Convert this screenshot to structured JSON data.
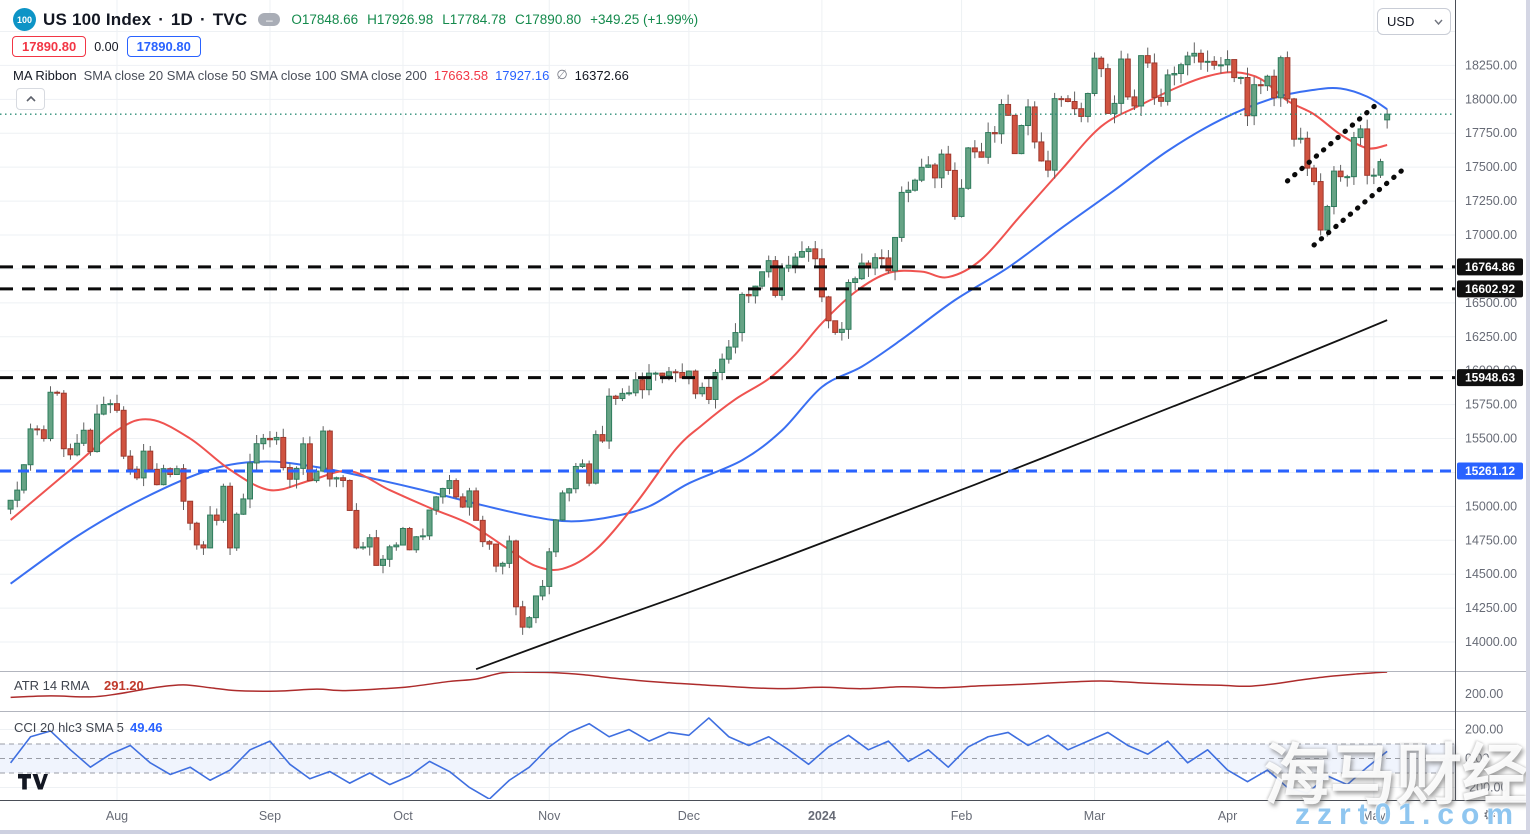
{
  "header": {
    "symbol_badge": "100",
    "title": "US 100 Index",
    "sep": "·",
    "timeframe": "1D",
    "exchange": "TVC",
    "minimize_glyph": "–",
    "ohlc": {
      "o": "O17848.66",
      "h": "H17926.98",
      "l": "L17784.78",
      "c": "C17890.80",
      "change": "+349.25 (+1.99%)"
    },
    "sell_price": "17890.80",
    "spread": "0.00",
    "buy_price": "17890.80",
    "ma_legend": {
      "name": "MA Ribbon",
      "params": "SMA close 20 SMA close 50 SMA close 100 SMA close 200",
      "v20": "17663.58",
      "v50": "17927.16",
      "v100": "∅",
      "v200": "16372.66"
    }
  },
  "axis": {
    "currency": "USD"
  },
  "pane_legends": {
    "atr_name": "ATR 14 RMA",
    "atr_value": "291.20",
    "cci_name": "CCI 20 hlc3 SMA 5",
    "cci_value": "49.46"
  },
  "watermarks": {
    "cn": "海马财经",
    "site": "zzrt01.com"
  },
  "colors": {
    "up_fill": "#66a385",
    "up_border": "#2f7c5d",
    "down_fill": "#d05340",
    "down_border": "#9f392e",
    "wick": "#616161",
    "sma20": "#ef5350",
    "sma50": "#3a6ff2",
    "sma200": "#131313",
    "atr_line": "#ad2c2c",
    "cci_line": "#3f6fe0",
    "level_black": "#0a0a0a",
    "level_blue": "#2962ff",
    "current_price": "#2f8e78",
    "grid": "#eef1f4",
    "axis_text": "#676b76",
    "badge_black": "#101010",
    "badge_blue": "#2962ff",
    "cci_band_fill": "rgba(62,111,224,0.08)",
    "band_dash": "#9a9da6"
  },
  "chart_data": {
    "type": "candlestick",
    "symbol": "US 100 Index (TVC)",
    "interval": "1D",
    "date_range": "2023-07-10 to 2024-05-03",
    "price_axis": {
      "min": 13790,
      "max": 18730,
      "grid_step": 250,
      "labels": [
        18250,
        18000,
        17750,
        17500,
        17250,
        17000,
        16500,
        16250,
        16000,
        15750,
        15500,
        15000,
        14750,
        14500,
        14250,
        14000
      ]
    },
    "months": [
      [
        "Aug",
        16
      ],
      [
        "Sep",
        39
      ],
      [
        "Oct",
        59
      ],
      [
        "Nov",
        81
      ],
      [
        "Dec",
        102
      ],
      [
        "2024",
        122
      ],
      [
        "Feb",
        143
      ],
      [
        "Mar",
        163
      ],
      [
        "Apr",
        183
      ],
      [
        "May",
        205
      ]
    ],
    "candles": {
      "first_open": 14980,
      "closes": [
        15045,
        15120,
        15307,
        15571,
        15565,
        15500,
        15841,
        15834,
        15425,
        15380,
        15465,
        15561,
        15404,
        15680,
        15751,
        15757,
        15708,
        15370,
        15274,
        15210,
        15407,
        15273,
        15160,
        15278,
        15235,
        15278,
        15038,
        14876,
        14716,
        14694,
        14936,
        14897,
        15148,
        14694,
        14942,
        15055,
        15320,
        15462,
        15501,
        15491,
        15508,
        15286,
        15200,
        15280,
        15461,
        15190,
        15260,
        15555,
        15202,
        15211,
        15191,
        14970,
        14694,
        14701,
        14769,
        14565,
        14610,
        14702,
        14715,
        14837,
        14680,
        14776,
        14783,
        14973,
        15070,
        15132,
        15190,
        15070,
        14995,
        15114,
        14897,
        14740,
        14722,
        14560,
        14580,
        14745,
        14260,
        14110,
        14180,
        14340,
        14410,
        14665,
        14900,
        15099,
        15130,
        15294,
        15313,
        15171,
        15529,
        15482,
        15812,
        15795,
        15833,
        15837,
        15933,
        15860,
        15982,
        15982,
        15963,
        15992,
        15987,
        15947,
        15997,
        15830,
        15877,
        15788,
        15987,
        16085,
        16174,
        16281,
        16562,
        16552,
        16623,
        16729,
        16811,
        16555,
        16757,
        16777,
        16837,
        16878,
        16898,
        16825,
        16544,
        16368,
        16282,
        16305,
        16650,
        16678,
        16793,
        16757,
        16833,
        16831,
        16736,
        16982,
        17314,
        17330,
        17404,
        17499,
        17516,
        17421,
        17596,
        17476,
        17137,
        17344,
        17642,
        17613,
        17573,
        17755,
        17746,
        17962,
        17882,
        17600,
        17807,
        17944,
        17686,
        17546,
        17478,
        18005,
        18004,
        17984,
        17931,
        17874,
        18043,
        18303,
        18226,
        17896,
        17970,
        18297,
        18018,
        17951,
        18322,
        18268,
        18014,
        17985,
        18180,
        18190,
        18255,
        18319,
        18339,
        18275,
        18280,
        18251,
        18254,
        18293,
        18160,
        18161,
        17879,
        18108,
        18100,
        18170,
        18011,
        18307,
        18003,
        17706,
        17713,
        17493,
        17394,
        17037,
        17210,
        17471,
        17430,
        17430,
        17718,
        17782,
        17440,
        17441,
        17541,
        17890.8
      ],
      "last_bar": {
        "open": 17848.66,
        "high": 17926.98,
        "low": 17784.78,
        "close": 17890.8
      }
    },
    "overlays": {
      "sma20": {
        "name": "SMA 20",
        "value": 17663.58,
        "anchors": [
          [
            0,
            14900
          ],
          [
            8,
            15230
          ],
          [
            16,
            15560
          ],
          [
            21,
            15640
          ],
          [
            27,
            15500
          ],
          [
            33,
            15270
          ],
          [
            39,
            15120
          ],
          [
            45,
            15190
          ],
          [
            51,
            15260
          ],
          [
            57,
            15120
          ],
          [
            63,
            14990
          ],
          [
            69,
            14870
          ],
          [
            75,
            14680
          ],
          [
            79,
            14560
          ],
          [
            83,
            14540
          ],
          [
            88,
            14680
          ],
          [
            94,
            15020
          ],
          [
            100,
            15420
          ],
          [
            104,
            15600
          ],
          [
            109,
            15790
          ],
          [
            114,
            15940
          ],
          [
            118,
            16120
          ],
          [
            122,
            16350
          ],
          [
            127,
            16580
          ],
          [
            132,
            16720
          ],
          [
            137,
            16730
          ],
          [
            141,
            16690
          ],
          [
            146,
            16820
          ],
          [
            152,
            17150
          ],
          [
            158,
            17480
          ],
          [
            164,
            17800
          ],
          [
            170,
            17960
          ],
          [
            176,
            18100
          ],
          [
            180,
            18170
          ],
          [
            184,
            18200
          ],
          [
            188,
            18150
          ],
          [
            192,
            17990
          ],
          [
            196,
            17890
          ],
          [
            200,
            17740
          ],
          [
            204,
            17640
          ],
          [
            207,
            17663.58
          ]
        ]
      },
      "sma50": {
        "name": "SMA 50",
        "value": 17927.16,
        "anchors": [
          [
            0,
            14430
          ],
          [
            10,
            14780
          ],
          [
            20,
            15060
          ],
          [
            30,
            15270
          ],
          [
            38,
            15330
          ],
          [
            46,
            15290
          ],
          [
            54,
            15210
          ],
          [
            62,
            15120
          ],
          [
            70,
            15020
          ],
          [
            78,
            14930
          ],
          [
            84,
            14890
          ],
          [
            90,
            14920
          ],
          [
            96,
            15000
          ],
          [
            102,
            15170
          ],
          [
            110,
            15340
          ],
          [
            116,
            15560
          ],
          [
            122,
            15880
          ],
          [
            128,
            16030
          ],
          [
            134,
            16230
          ],
          [
            142,
            16520
          ],
          [
            150,
            16760
          ],
          [
            158,
            17050
          ],
          [
            166,
            17330
          ],
          [
            174,
            17620
          ],
          [
            182,
            17850
          ],
          [
            190,
            18010
          ],
          [
            196,
            18070
          ],
          [
            200,
            18080
          ],
          [
            204,
            18020
          ],
          [
            207,
            17927.16
          ]
        ]
      },
      "sma200": {
        "name": "SMA 200",
        "value": 16372.66,
        "anchors": [
          [
            70,
            13800
          ],
          [
            85,
            14070
          ],
          [
            100,
            14330
          ],
          [
            115,
            14600
          ],
          [
            130,
            14880
          ],
          [
            145,
            15160
          ],
          [
            160,
            15450
          ],
          [
            175,
            15740
          ],
          [
            190,
            16030
          ],
          [
            200,
            16230
          ],
          [
            207,
            16372.66
          ]
        ]
      },
      "levels": [
        {
          "price": 16764.86,
          "label": "16764.86",
          "color": "black"
        },
        {
          "price": 16602.92,
          "label": "16602.92",
          "color": "black"
        },
        {
          "price": 15948.63,
          "label": "15948.63",
          "color": "black"
        },
        {
          "price": 15261.12,
          "label": "15261.12",
          "color": "blue"
        }
      ],
      "current_price": 17890.8,
      "channel": {
        "upper": [
          [
            192,
            17398
          ],
          [
            206,
            17988
          ]
        ],
        "lower": [
          [
            196,
            16926
          ],
          [
            210,
            17508
          ]
        ]
      }
    },
    "indicators": {
      "atr": {
        "name": "ATR 14 RMA",
        "current": 291.2,
        "axis_labels": [
          200
        ],
        "anchors": [
          [
            0,
            186
          ],
          [
            6,
            192
          ],
          [
            12,
            188
          ],
          [
            16,
            200
          ],
          [
            22,
            228
          ],
          [
            26,
            238
          ],
          [
            30,
            226
          ],
          [
            34,
            214
          ],
          [
            40,
            212
          ],
          [
            46,
            220
          ],
          [
            50,
            214
          ],
          [
            56,
            222
          ],
          [
            60,
            230
          ],
          [
            66,
            252
          ],
          [
            70,
            262
          ],
          [
            74,
            288
          ],
          [
            78,
            290
          ],
          [
            82,
            288
          ],
          [
            86,
            280
          ],
          [
            92,
            262
          ],
          [
            98,
            248
          ],
          [
            104,
            238
          ],
          [
            110,
            228
          ],
          [
            116,
            222
          ],
          [
            122,
            228
          ],
          [
            128,
            222
          ],
          [
            134,
            230
          ],
          [
            140,
            226
          ],
          [
            146,
            234
          ],
          [
            152,
            240
          ],
          [
            158,
            248
          ],
          [
            164,
            254
          ],
          [
            170,
            246
          ],
          [
            176,
            240
          ],
          [
            182,
            236
          ],
          [
            186,
            232
          ],
          [
            190,
            242
          ],
          [
            194,
            258
          ],
          [
            198,
            272
          ],
          [
            202,
            282
          ],
          [
            207,
            291.2
          ]
        ]
      },
      "cci": {
        "name": "CCI 20 hlc3 SMA 5",
        "current": 49.46,
        "axis_labels": [
          200,
          0,
          -200
        ],
        "band": [
          100,
          -100
        ],
        "anchors": [
          [
            0,
            -30
          ],
          [
            3,
            150
          ],
          [
            6,
            190
          ],
          [
            9,
            60
          ],
          [
            12,
            -60
          ],
          [
            15,
            30
          ],
          [
            18,
            90
          ],
          [
            21,
            -30
          ],
          [
            24,
            -110
          ],
          [
            27,
            -60
          ],
          [
            30,
            -150
          ],
          [
            33,
            -80
          ],
          [
            36,
            60
          ],
          [
            39,
            120
          ],
          [
            42,
            -40
          ],
          [
            45,
            -140
          ],
          [
            48,
            -90
          ],
          [
            51,
            -170
          ],
          [
            54,
            -100
          ],
          [
            57,
            -180
          ],
          [
            60,
            -120
          ],
          [
            63,
            -20
          ],
          [
            66,
            -90
          ],
          [
            69,
            -200
          ],
          [
            72,
            -280
          ],
          [
            75,
            -150
          ],
          [
            78,
            -60
          ],
          [
            81,
            80
          ],
          [
            84,
            180
          ],
          [
            87,
            240
          ],
          [
            90,
            150
          ],
          [
            93,
            200
          ],
          [
            96,
            120
          ],
          [
            99,
            180
          ],
          [
            102,
            160
          ],
          [
            105,
            280
          ],
          [
            108,
            150
          ],
          [
            111,
            90
          ],
          [
            114,
            150
          ],
          [
            117,
            60
          ],
          [
            120,
            -40
          ],
          [
            123,
            80
          ],
          [
            126,
            160
          ],
          [
            129,
            60
          ],
          [
            132,
            120
          ],
          [
            135,
            -20
          ],
          [
            138,
            60
          ],
          [
            141,
            -60
          ],
          [
            144,
            80
          ],
          [
            147,
            150
          ],
          [
            150,
            180
          ],
          [
            153,
            90
          ],
          [
            156,
            160
          ],
          [
            159,
            60
          ],
          [
            162,
            120
          ],
          [
            165,
            180
          ],
          [
            168,
            90
          ],
          [
            171,
            30
          ],
          [
            174,
            120
          ],
          [
            177,
            -30
          ],
          [
            180,
            60
          ],
          [
            183,
            -80
          ],
          [
            186,
            -160
          ],
          [
            189,
            -80
          ],
          [
            192,
            -200
          ],
          [
            195,
            -240
          ],
          [
            198,
            -120
          ],
          [
            201,
            -180
          ],
          [
            204,
            -60
          ],
          [
            207,
            49.46
          ]
        ]
      }
    }
  }
}
